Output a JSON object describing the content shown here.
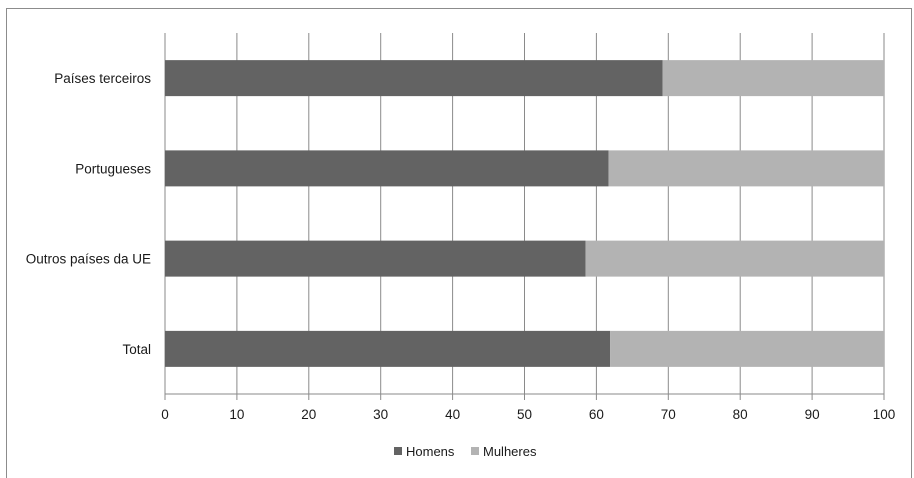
{
  "chart_data": {
    "type": "bar",
    "orientation": "horizontal",
    "stacked": true,
    "categories": [
      "Países terceiros",
      "Portugueses",
      "Outros países da UE",
      "Total"
    ],
    "series": [
      {
        "name": "Homens",
        "values": [
          69.2,
          61.7,
          58.5,
          61.9
        ],
        "color": "#636363"
      },
      {
        "name": "Mulheres",
        "values": [
          30.8,
          38.3,
          41.5,
          38.1
        ],
        "color": "#b3b3b3"
      }
    ],
    "xlim": [
      0,
      100
    ],
    "xticks": [
      "0",
      "10",
      "20",
      "30",
      "40",
      "50",
      "60",
      "70",
      "80",
      "90",
      "100"
    ],
    "grid": true,
    "legend": "bottom-center"
  }
}
